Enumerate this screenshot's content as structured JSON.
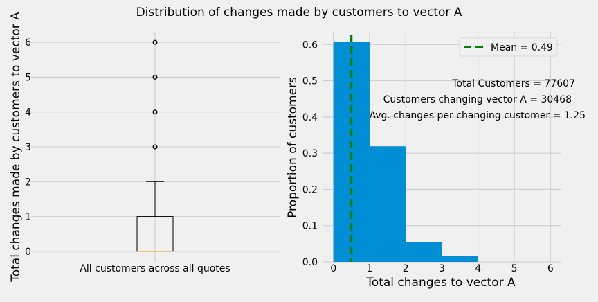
{
  "figure": {
    "suptitle": "Distribution of changes made by customers to vector A"
  },
  "colors": {
    "background": "#f0f0f0",
    "grid": "#cbcbcb",
    "bar": "#008fd5",
    "mean_line": "#008000",
    "median": "#e5ae38"
  },
  "chart_data": [
    {
      "type": "box",
      "xlabel": "All customers across all quotes",
      "ylabel": "Total changes made by customers to vector A",
      "ylim": [
        -0.3,
        6.3
      ],
      "yticks": [
        "0",
        "1",
        "2",
        "3",
        "4",
        "5",
        "6"
      ],
      "box": {
        "min": 0,
        "q1": 0,
        "median": 0,
        "q3": 1,
        "whisker_low": 0,
        "whisker_high": 2,
        "outliers": [
          3,
          4,
          5,
          6
        ]
      },
      "grid": true
    },
    {
      "type": "bar",
      "xlabel": "Total changes to vector A",
      "ylabel": "Proportion of customers",
      "xlim": [
        -0.3,
        6.3
      ],
      "ylim": [
        0,
        0.635
      ],
      "xticks": [
        "0",
        "1",
        "2",
        "3",
        "4",
        "5",
        "6"
      ],
      "yticks": [
        "0.0",
        "0.1",
        "0.2",
        "0.3",
        "0.4",
        "0.5",
        "0.6"
      ],
      "bins": [
        {
          "x0": 0,
          "x1": 1,
          "value": 0.608
        },
        {
          "x0": 1,
          "x1": 2,
          "value": 0.319
        },
        {
          "x0": 2,
          "x1": 3,
          "value": 0.054
        },
        {
          "x0": 3,
          "x1": 4,
          "value": 0.016
        }
      ],
      "mean": 0.49,
      "legend": {
        "label": "Mean = 0.49",
        "placement": "top-right"
      },
      "annotations": [
        "Total Customers = 77607",
        "Customers changing vector A = 30468",
        "Avg. changes per changing customer = 1.25"
      ],
      "grid": true
    }
  ]
}
